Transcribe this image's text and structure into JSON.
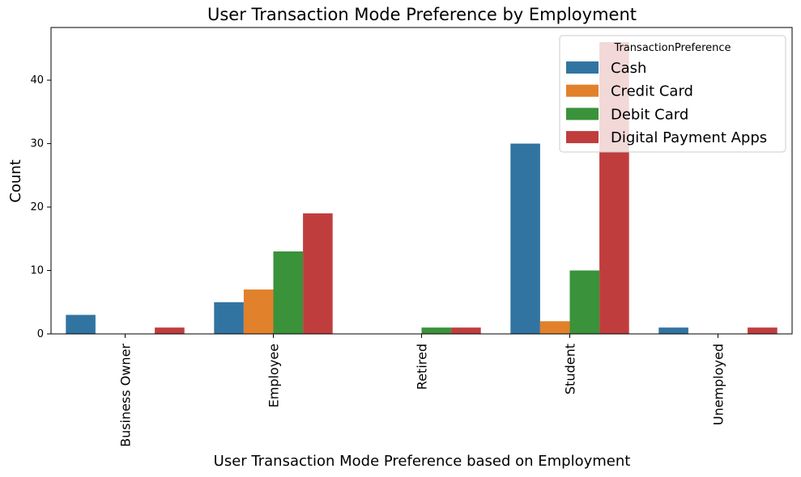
{
  "chart_data": {
    "type": "bar",
    "title": "User Transaction Mode Preference by Employment",
    "xlabel": "User Transaction Mode Preference based on Employment",
    "ylabel": "Count",
    "categories": [
      "Business Owner",
      "Employee",
      "Retired",
      "Student",
      "Unemployed"
    ],
    "series": [
      {
        "name": "Cash",
        "color": "#3274a1",
        "values": [
          3,
          5,
          0,
          30,
          1
        ]
      },
      {
        "name": "Credit Card",
        "color": "#e1812c",
        "values": [
          0,
          7,
          0,
          2,
          0
        ]
      },
      {
        "name": "Debit Card",
        "color": "#3a923a",
        "values": [
          0,
          13,
          1,
          10,
          0
        ]
      },
      {
        "name": "Digital Payment Apps",
        "color": "#c03d3e",
        "values": [
          1,
          19,
          1,
          46,
          1
        ]
      }
    ],
    "ylim": [
      0,
      48.3
    ],
    "yticks": [
      0,
      10,
      20,
      30,
      40
    ],
    "legend": {
      "title": "TransactionPreference",
      "placement": "top-right"
    },
    "grid": false
  }
}
